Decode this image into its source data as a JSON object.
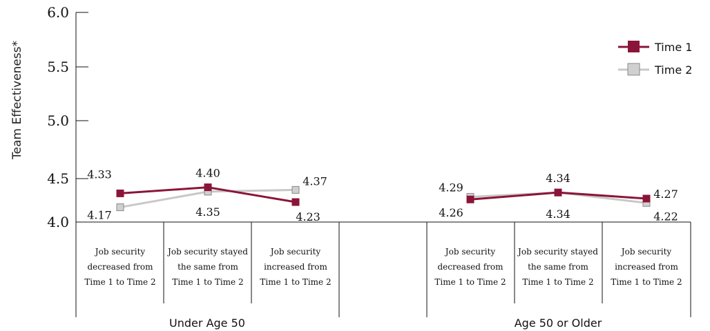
{
  "chart_data": {
    "type": "line",
    "ylabel": "Team Effectiveness*",
    "ylim": [
      4.0,
      6.0
    ],
    "yticks": [
      "4.0",
      "4.5",
      "5.0",
      "5.5",
      "6.0"
    ],
    "categories": [
      "Job security decreased from Time 1 to Time 2",
      "Job security stayed the same from Time 1 to Time 2",
      "Job security increased from Time 1 to Time 2"
    ],
    "category_lines": [
      [
        "Job security",
        "decreased from",
        "Time 1 to Time 2"
      ],
      [
        "Job security stayed",
        "the same from",
        "Time 1 to Time 2"
      ],
      [
        "Job security",
        "increased from",
        "Time 1 to Time 2"
      ]
    ],
    "groups": [
      {
        "name": "Under Age 50",
        "series": [
          {
            "name": "Time 1",
            "values": [
              4.33,
              4.4,
              4.23
            ],
            "labels": [
              "4.33",
              "4.40",
              "4.23"
            ]
          },
          {
            "name": "Time 2",
            "values": [
              4.17,
              4.35,
              4.37
            ],
            "labels": [
              "4.17",
              "4.35",
              "4.37"
            ]
          }
        ]
      },
      {
        "name": "Age 50 or Older",
        "series": [
          {
            "name": "Time 1",
            "values": [
              4.26,
              4.34,
              4.27
            ],
            "labels": [
              "4.26",
              "4.34",
              "4.27"
            ]
          },
          {
            "name": "Time 2",
            "values": [
              4.29,
              4.34,
              4.22
            ],
            "labels": [
              "4.29",
              "4.34",
              "4.22"
            ]
          }
        ]
      }
    ],
    "legend": {
      "position": "top-right",
      "items": [
        {
          "name": "Time 1",
          "color": "#8b1538"
        },
        {
          "name": "Time 2",
          "color": "#c8c8c8"
        }
      ]
    },
    "grid": false
  }
}
